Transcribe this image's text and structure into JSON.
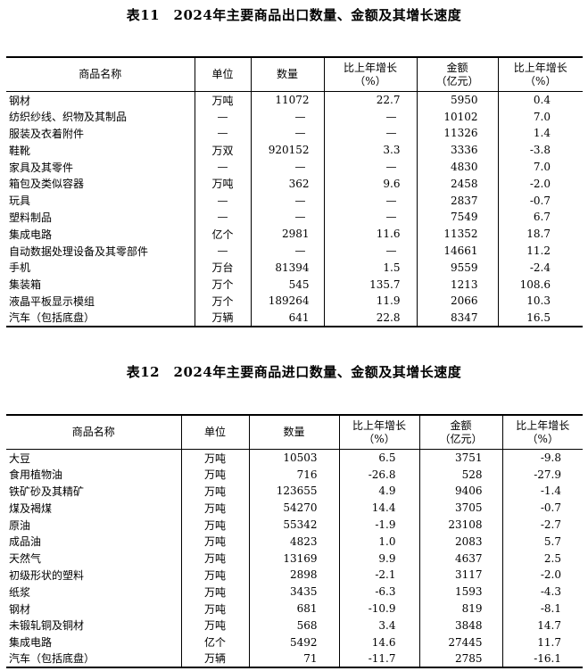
{
  "table11": {
    "title": "表11　2024年主要商品出口数量、金额及其增长速度",
    "headers": [
      "商品名称",
      "单位",
      "数量",
      "比上年增长\n（%）",
      "金额\n（亿元）",
      "比上年增长\n（%）"
    ],
    "rows": [
      [
        "钢材",
        "万吨",
        "11072",
        "22.7",
        "5950",
        "0.4"
      ],
      [
        "纺织纱线、织物及其制品",
        "—",
        "—",
        "—",
        "10102",
        "7.0"
      ],
      [
        "服装及衣着附件",
        "—",
        "—",
        "—",
        "11326",
        "1.4"
      ],
      [
        "鞋靴",
        "万双",
        "920152",
        "3.3",
        "3336",
        "-3.8"
      ],
      [
        "家具及其零件",
        "—",
        "—",
        "—",
        "4830",
        "7.0"
      ],
      [
        "箱包及类似容器",
        "万吨",
        "362",
        "9.6",
        "2458",
        "-2.0"
      ],
      [
        "玩具",
        "—",
        "—",
        "—",
        "2837",
        "-0.7"
      ],
      [
        "塑料制品",
        "—",
        "—",
        "—",
        "7549",
        "6.7"
      ],
      [
        "集成电路",
        "亿个",
        "2981",
        "11.6",
        "11352",
        "18.7"
      ],
      [
        "自动数据处理设备及其零部件",
        "—",
        "—",
        "—",
        "14661",
        "11.2"
      ],
      [
        "手机",
        "万台",
        "81394",
        "1.5",
        "9559",
        "-2.4"
      ],
      [
        "集装箱",
        "万个",
        "545",
        "135.7",
        "1213",
        "108.6"
      ],
      [
        "液晶平板显示模组",
        "万个",
        "189264",
        "11.9",
        "2066",
        "10.3"
      ],
      [
        "汽车（包括底盘）",
        "万辆",
        "641",
        "22.8",
        "8347",
        "16.5"
      ]
    ]
  },
  "table12": {
    "title": "表12　2024年主要商品进口数量、金额及其增长速度",
    "headers": [
      "商品名称",
      "单位",
      "数量",
      "比上年增长\n（%）",
      "金额\n（亿元）",
      "比上年增长\n（%）"
    ],
    "rows": [
      [
        "大豆",
        "万吨",
        "10503",
        "6.5",
        "3751",
        "-9.8"
      ],
      [
        "食用植物油",
        "万吨",
        "716",
        "-26.8",
        "528",
        "-27.9"
      ],
      [
        "铁矿砂及其精矿",
        "万吨",
        "123655",
        "4.9",
        "9406",
        "-1.4"
      ],
      [
        "煤及褐煤",
        "万吨",
        "54270",
        "14.4",
        "3705",
        "-0.7"
      ],
      [
        "原油",
        "万吨",
        "55342",
        "-1.9",
        "23108",
        "-2.7"
      ],
      [
        "成品油",
        "万吨",
        "4823",
        "1.0",
        "2083",
        "5.7"
      ],
      [
        "天然气",
        "万吨",
        "13169",
        "9.9",
        "4637",
        "2.5"
      ],
      [
        "初级形状的塑料",
        "万吨",
        "2898",
        "-2.1",
        "3117",
        "-2.0"
      ],
      [
        "纸浆",
        "万吨",
        "3435",
        "-6.3",
        "1593",
        "-4.3"
      ],
      [
        "钢材",
        "万吨",
        "681",
        "-10.9",
        "819",
        "-8.1"
      ],
      [
        "未锻轧铜及铜材",
        "万吨",
        "568",
        "3.4",
        "3848",
        "14.7"
      ],
      [
        "集成电路",
        "亿个",
        "5492",
        "14.6",
        "27445",
        "11.7"
      ],
      [
        "汽车（包括底盘）",
        "万辆",
        "71",
        "-11.7",
        "2785",
        "-16.1"
      ]
    ]
  }
}
